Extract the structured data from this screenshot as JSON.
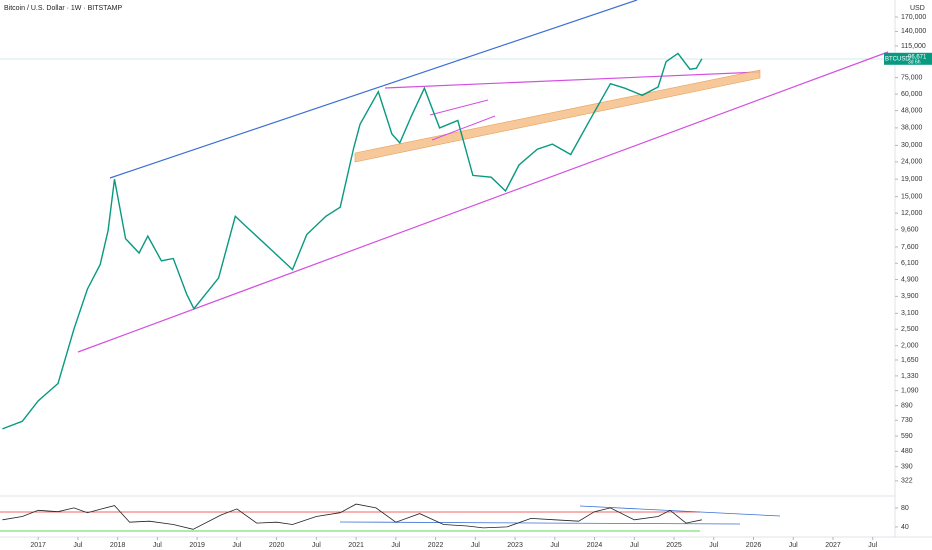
{
  "title": "Bitcoin / U.S. Dollar · 1W · BITSTAMP",
  "currency": "USD",
  "chart_data": [
    {
      "type": "line",
      "log": true,
      "color": "#089981",
      "x": [
        2016.55,
        2016.8,
        2017.0,
        2017.25,
        2017.45,
        2017.62,
        2017.78,
        2017.88,
        2017.96,
        2018.1,
        2018.27,
        2018.38,
        2018.55,
        2018.7,
        2018.87,
        2018.96,
        2019.27,
        2019.48,
        2019.62,
        2019.95,
        2020.2,
        2020.38,
        2020.62,
        2020.8,
        2020.97,
        2021.05,
        2021.28,
        2021.45,
        2021.55,
        2021.7,
        2021.86,
        2022.05,
        2022.28,
        2022.47,
        2022.7,
        2022.88,
        2023.05,
        2023.28,
        2023.47,
        2023.7,
        2023.95,
        2024.2,
        2024.38,
        2024.6,
        2024.8,
        2024.9,
        2024.97,
        2025.05,
        2025.2,
        2025.28,
        2025.35
      ],
      "values": [
        650,
        720,
        950,
        1200,
        2500,
        4300,
        6000,
        9500,
        19000,
        8500,
        7000,
        8800,
        6300,
        6500,
        4000,
        3300,
        5000,
        11500,
        10000,
        7200,
        5600,
        9000,
        11500,
        13000,
        29000,
        40000,
        62000,
        35000,
        31000,
        45000,
        65000,
        38000,
        42000,
        20000,
        19500,
        16200,
        23000,
        28500,
        30500,
        26500,
        43000,
        69000,
        65000,
        59000,
        66000,
        93000,
        98000,
        104000,
        84000,
        85000,
        96671
      ],
      "last_symbol": "BTCUSD",
      "last_value_label": "96,671",
      "countdown": "3d 6h",
      "xlim": [
        2016.52,
        2027.78
      ],
      "ylim": [
        266,
        214000
      ],
      "xticks": [
        2017,
        {
          "value": 2017.5,
          "label": "Jul"
        },
        2018,
        {
          "value": 2018.5,
          "label": "Jul"
        },
        2019,
        {
          "value": 2019.5,
          "label": "Jul"
        },
        2020,
        {
          "value": 2020.5,
          "label": "Jul"
        },
        2021,
        {
          "value": 2021.5,
          "label": "Jul"
        },
        2022,
        {
          "value": 2022.5,
          "label": "Jul"
        },
        2023,
        {
          "value": 2023.5,
          "label": "Jul"
        },
        2024,
        {
          "value": 2024.5,
          "label": "Jul"
        },
        2025,
        {
          "value": 2025.5,
          "label": "Jul"
        },
        2026,
        {
          "value": 2026.5,
          "label": "Jul"
        },
        2027,
        {
          "value": 2027.5,
          "label": "Jul"
        }
      ],
      "yticks": [
        {
          "value": 170000,
          "label": "170,000"
        },
        {
          "value": 140000,
          "label": "140,000"
        },
        {
          "value": 115000,
          "label": "115,000"
        },
        {
          "value": 75000,
          "label": "75,000"
        },
        {
          "value": 60000,
          "label": "60,000"
        },
        {
          "value": 48000,
          "label": "48,000"
        },
        {
          "value": 38000,
          "label": "38,000"
        },
        {
          "value": 30000,
          "label": "30,000"
        },
        {
          "value": 24000,
          "label": "24,000"
        },
        {
          "value": 19000,
          "label": "19,000"
        },
        {
          "value": 15000,
          "label": "15,000"
        },
        {
          "value": 12000,
          "label": "12,000"
        },
        {
          "value": 9600,
          "label": "9,600"
        },
        {
          "value": 7600,
          "label": "7,600"
        },
        {
          "value": 6100,
          "label": "6,100"
        },
        {
          "value": 4900,
          "label": "4,900"
        },
        {
          "value": 3900,
          "label": "3,900"
        },
        {
          "value": 3100,
          "label": "3,100"
        },
        {
          "value": 2500,
          "label": "2,500"
        },
        {
          "value": 2000,
          "label": "2,000"
        },
        {
          "value": 1650,
          "label": "1,650"
        },
        {
          "value": 1330,
          "label": "1,330"
        },
        {
          "value": 1090,
          "label": "1,090"
        },
        890,
        730,
        590,
        480,
        390,
        322
      ]
    },
    {
      "type": "line",
      "color": "#222222",
      "x": [
        2016.55,
        2016.8,
        2017.0,
        2017.25,
        2017.45,
        2017.62,
        2017.8,
        2017.96,
        2018.15,
        2018.4,
        2018.7,
        2018.95,
        2019.3,
        2019.5,
        2019.75,
        2020.0,
        2020.2,
        2020.5,
        2020.8,
        2021.0,
        2021.25,
        2021.5,
        2021.8,
        2022.1,
        2022.4,
        2022.6,
        2022.9,
        2023.2,
        2023.5,
        2023.8,
        2024.0,
        2024.2,
        2024.5,
        2024.8,
        2024.95,
        2025.15,
        2025.35
      ],
      "values": [
        55,
        62,
        75,
        72,
        80,
        70,
        78,
        85,
        50,
        52,
        45,
        35,
        65,
        78,
        48,
        50,
        45,
        62,
        70,
        88,
        80,
        50,
        68,
        45,
        42,
        38,
        40,
        58,
        55,
        52,
        72,
        80,
        55,
        62,
        75,
        48,
        55
      ],
      "xlim": [
        2016.52,
        2027.78
      ],
      "ylim": [
        23,
        103
      ],
      "yticks": [
        80,
        40
      ]
    }
  ]
}
